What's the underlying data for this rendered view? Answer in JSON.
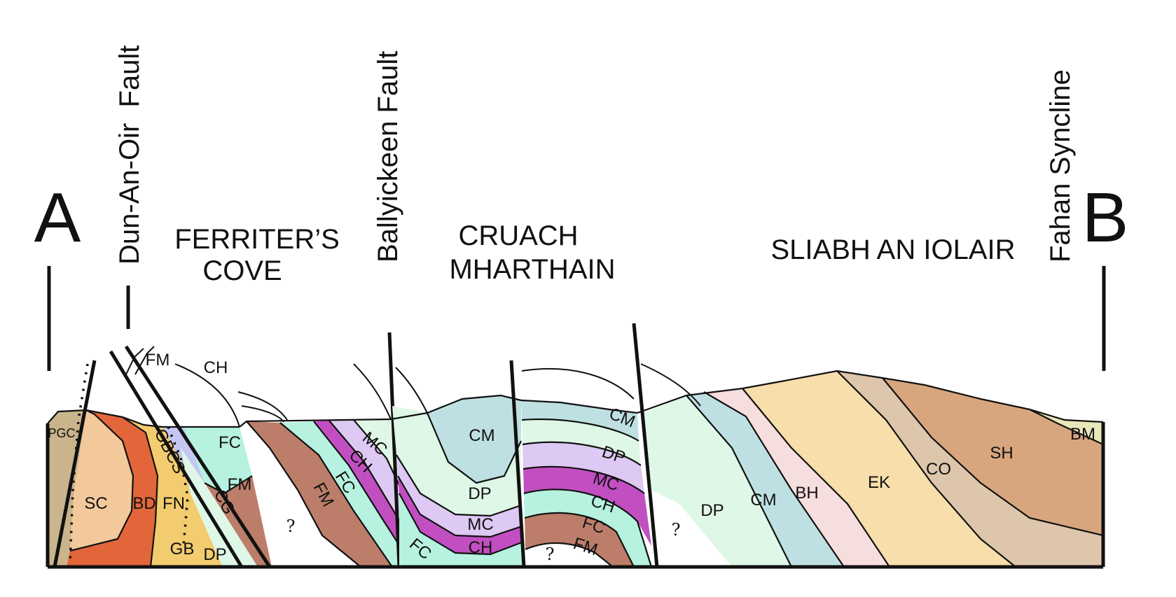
{
  "end_labels": {
    "left": "A",
    "right": "B"
  },
  "structures": {
    "dun_an_oir": "Dun-An-Oir  Fault",
    "ballyickeen": "Ballyickeen Fault",
    "fahan": "Fahan Syncline"
  },
  "regions": {
    "ferriters_line1": "FERRITER’S",
    "ferriters_line2": "COVE",
    "cruach_line1": "CRUACH",
    "cruach_line2": "MHARTHAIN",
    "sliabh": "SLIABH AN IOLAIR"
  },
  "units": {
    "pgc": "PGC",
    "sc": "SC",
    "bd": "BD",
    "gbcs": "GBCS",
    "fn": "FN",
    "cg": "CG",
    "gb": "GB",
    "dp_left": "DP",
    "fm_top": "FM",
    "ch_top": "CH",
    "fc_ferriter": "FC",
    "fm_ferriter": "FM",
    "fm_low": "FM",
    "fc_low": "FC",
    "ch_low": "CH",
    "mc_low": "MC",
    "fc_bottom": "FC",
    "cm_cruach": "CM",
    "dp_cruach": "DP",
    "mc_cruach": "MC",
    "ch_cruach": "CH",
    "cm_east": "CM",
    "dp_east": "DP",
    "mc_east": "MC",
    "ch_east": "CH",
    "fc_east": "FC",
    "fm_east": "FM",
    "dp_sliabh": "DP",
    "cm_sliabh": "CM",
    "bh": "BH",
    "ek": "EK",
    "co": "CO",
    "sh": "SH",
    "bm": "BM"
  },
  "uncertain_marks": {
    "q1": "?",
    "q2": "?",
    "q3": "?"
  },
  "unit_colors": {
    "PGC": "#c9b48c",
    "SC": "#f3c99c",
    "BD": "#e2663a",
    "GB": "#f2cc6e",
    "CG": "#c6c6f2",
    "FC": "#b6f2df",
    "FM": "#bc7e6a",
    "CH": "#c24fc2",
    "MC": "#ddc9f3",
    "DP": "#dff7e6",
    "CM": "#bfe0e2",
    "BH": "#f7dede",
    "EK": "#f7deab",
    "CO": "#ddc6ab",
    "SH": "#d8a67e",
    "BM": "#e8e6bb"
  }
}
